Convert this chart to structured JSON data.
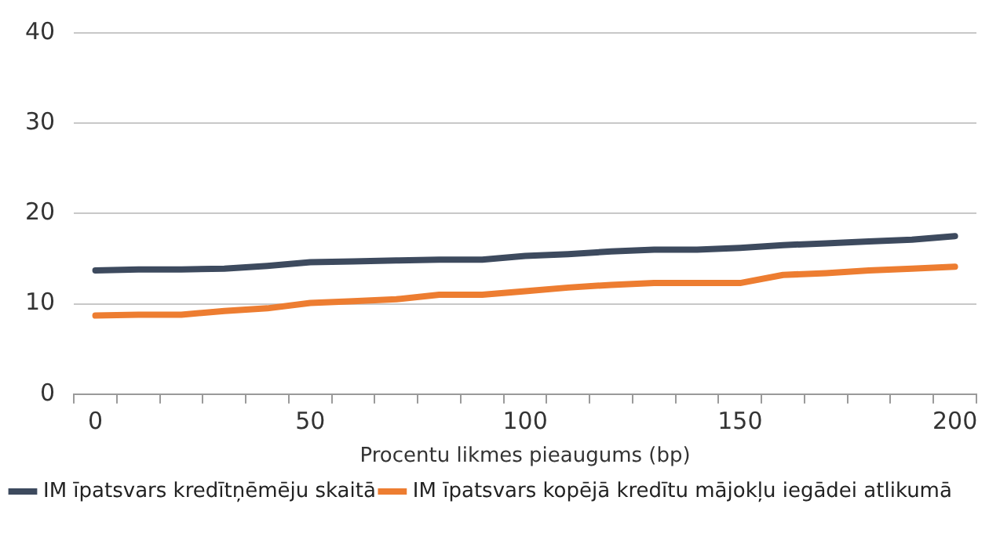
{
  "chart_data": {
    "type": "line",
    "xlabel": "Procentu likmes pieaugums (bp)",
    "categories": [
      "0",
      null,
      null,
      null,
      null,
      "50",
      null,
      null,
      null,
      null,
      "100",
      null,
      null,
      null,
      null,
      "150",
      null,
      null,
      null,
      null,
      "200"
    ],
    "series": [
      {
        "name": "IM īpatsvars kredītņēmēju skaitā",
        "color": "#3d4a5e",
        "values": [
          13.7,
          13.8,
          13.8,
          13.9,
          14.2,
          14.6,
          14.7,
          14.8,
          14.9,
          14.9,
          15.3,
          15.5,
          15.8,
          16.0,
          16.0,
          16.2,
          16.5,
          16.7,
          16.9,
          17.1,
          17.5
        ]
      },
      {
        "name": "IM īpatsvars kopējā kredītu mājokļu iegādei atlikumā",
        "color": "#ed7d31",
        "values": [
          8.7,
          8.8,
          8.8,
          9.2,
          9.5,
          10.1,
          10.3,
          10.5,
          11.0,
          11.0,
          11.4,
          11.8,
          12.1,
          12.3,
          12.3,
          12.3,
          13.2,
          13.4,
          13.7,
          13.9,
          14.1
        ]
      }
    ],
    "ylim": [
      0,
      40
    ],
    "yticks": [
      0,
      10,
      20,
      30,
      40
    ],
    "grid": "y",
    "legend": "bottom",
    "marker": "none",
    "line_style": "solid"
  }
}
